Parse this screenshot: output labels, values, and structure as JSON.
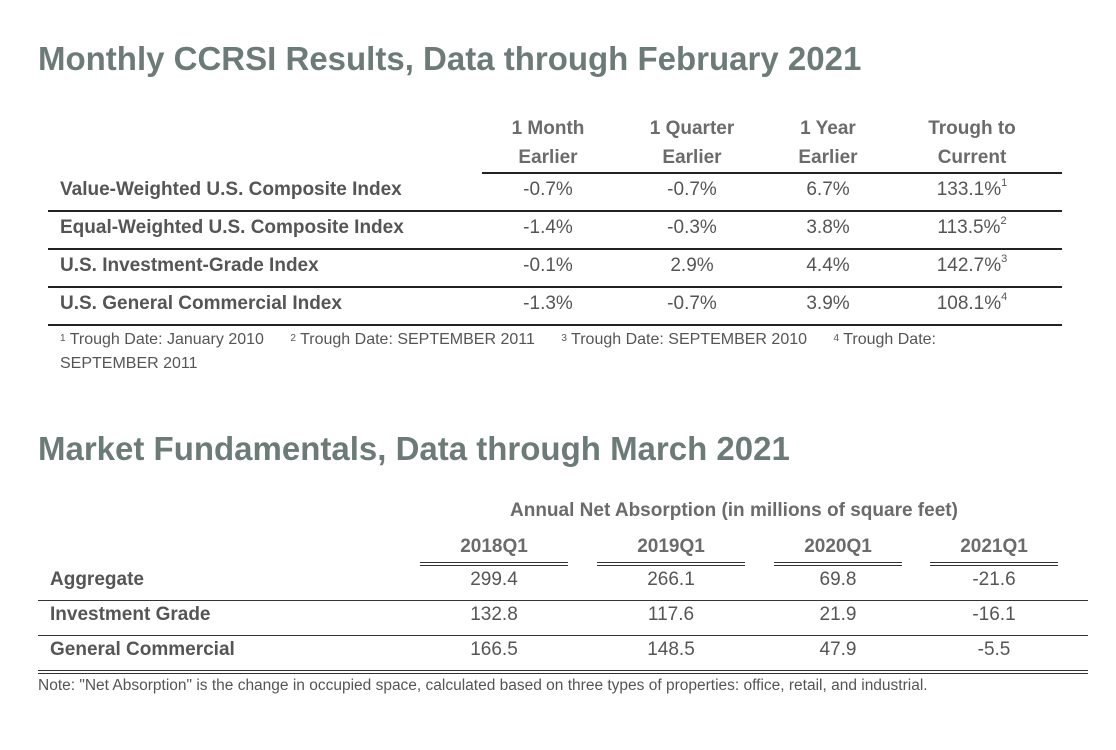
{
  "ccrsi": {
    "title": "Monthly CCRSI Results, Data through February 2021",
    "headers": [
      {
        "line1": "1 Month",
        "line2": "Earlier"
      },
      {
        "line1": "1 Quarter",
        "line2": "Earlier"
      },
      {
        "line1": "1 Year",
        "line2": "Earlier"
      },
      {
        "line1": "Trough to",
        "line2": "Current"
      }
    ],
    "rows": [
      {
        "label": "Value-Weighted U.S. Composite Index",
        "values": [
          "-0.7%",
          "-0.7%",
          "6.7%",
          "133.1%"
        ],
        "note": "1"
      },
      {
        "label": "Equal-Weighted U.S. Composite Index",
        "values": [
          "-1.4%",
          "-0.3%",
          "3.8%",
          "113.5%"
        ],
        "note": "2"
      },
      {
        "label": "U.S. Investment-Grade Index",
        "values": [
          "-0.1%",
          "2.9%",
          "4.4%",
          "142.7%"
        ],
        "note": "3"
      },
      {
        "label": "U.S. General Commercial Index",
        "values": [
          "-1.3%",
          "-0.7%",
          "3.9%",
          "108.1%"
        ],
        "note": "4"
      }
    ],
    "footnotes": [
      {
        "num": "1",
        "text": "Trough Date: January 2010"
      },
      {
        "num": "2",
        "text": "Trough Date: SEPTEMBER 2011"
      },
      {
        "num": "3",
        "text": "Trough Date: SEPTEMBER 2010"
      },
      {
        "num": "4",
        "text": "Trough Date: SEPTEMBER 2011"
      }
    ]
  },
  "fundamentals": {
    "title": "Market Fundamentals, Data through March 2021",
    "subtitle": "Annual Net Absorption (in millions of square feet)",
    "columns": [
      "2018Q1",
      "2019Q1",
      "2020Q1",
      "2021Q1"
    ],
    "rows": [
      {
        "label": "Aggregate",
        "values": [
          "299.4",
          "266.1",
          "69.8",
          "-21.6"
        ]
      },
      {
        "label": "Investment Grade",
        "values": [
          "132.8",
          "117.6",
          "21.9",
          "-16.1"
        ]
      },
      {
        "label": "General Commercial",
        "values": [
          "166.5",
          "148.5",
          "47.9",
          "-5.5"
        ]
      }
    ],
    "note": "Note: \"Net Absorption\" is the change in occupied space, calculated based on three types of properties: office, retail, and industrial."
  }
}
